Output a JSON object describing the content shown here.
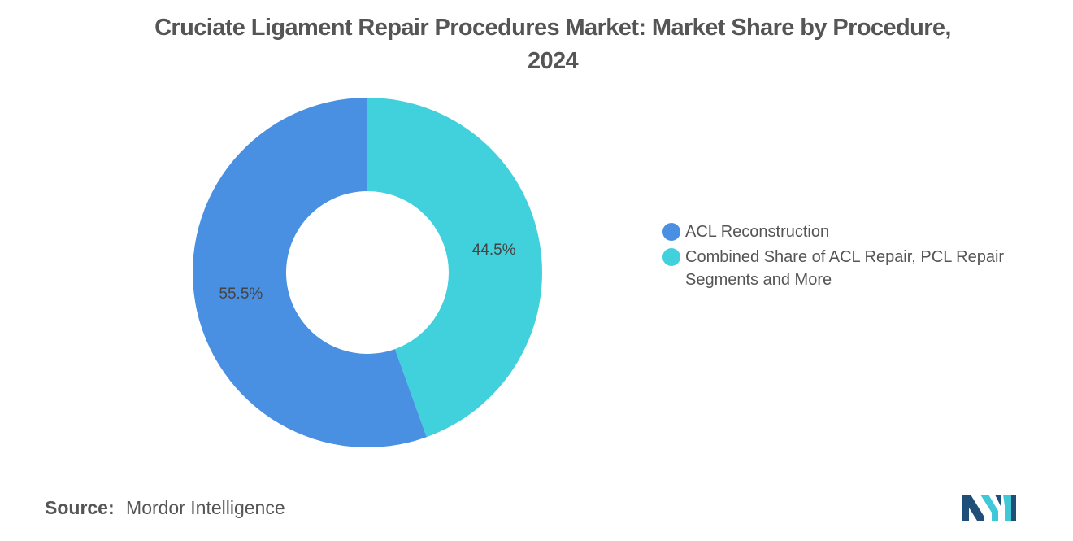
{
  "title": {
    "line1": "Cruciate Ligament Repair Procedures Market: Market Share by Procedure,",
    "line2": "2024"
  },
  "chart_data": {
    "type": "pie",
    "donut": true,
    "categories": [
      "ACL Reconstruction",
      "Combined Share of ACL Repair, PCL Repair Segments and More"
    ],
    "values": [
      55.5,
      44.5
    ],
    "unit": "%",
    "colors": [
      "#4a90e2",
      "#41d1dc"
    ],
    "data_labels": [
      "55.5%",
      "44.5%"
    ],
    "legend_position": "right"
  },
  "legend": {
    "items": [
      {
        "label": "ACL Reconstruction",
        "color": "#4a90e2"
      },
      {
        "label": "Combined Share of ACL Repair, PCL Repair Segments and More",
        "color": "#41d1dc"
      }
    ]
  },
  "source": {
    "label": "Source:",
    "value": "Mordor Intelligence"
  },
  "logo": {
    "icon": "mordor-intelligence-logo-icon",
    "colors": [
      "#1f4e79",
      "#41c8d8"
    ]
  }
}
